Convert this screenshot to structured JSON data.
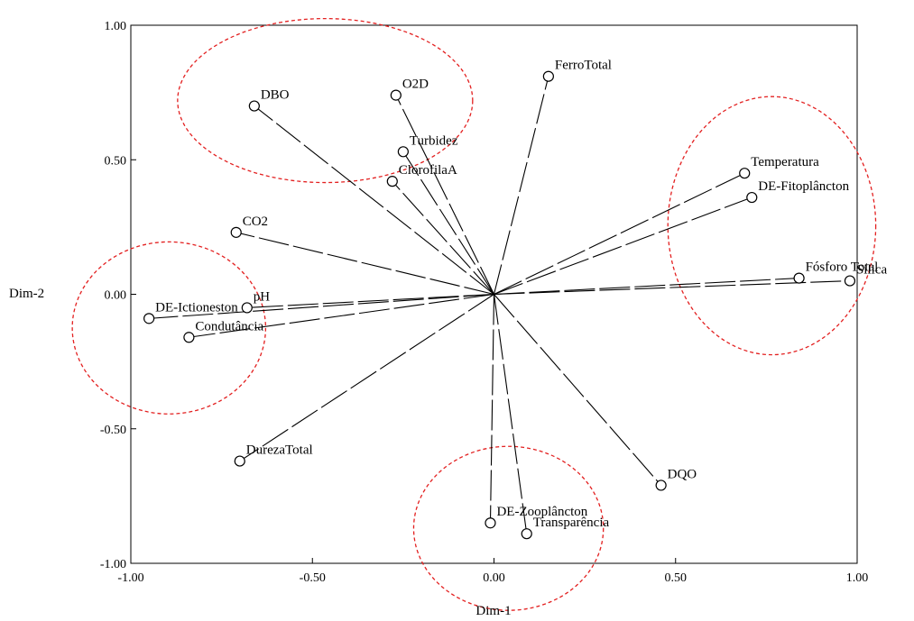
{
  "chart_data": {
    "type": "scatter",
    "title": "",
    "xlabel": "Dim-1",
    "ylabel": "Dim-2",
    "xlim": [
      -1.0,
      1.0
    ],
    "ylim": [
      -1.0,
      1.0
    ],
    "x_ticks": [
      "-1.00",
      "-0.50",
      "0.00",
      "0.50",
      "1.00"
    ],
    "y_ticks": [
      "1.00",
      "0.50",
      "0.00",
      "-0.50",
      "-1.00"
    ],
    "grid": false,
    "vectors_from_origin": true,
    "points": [
      {
        "label": "FerroTotal",
        "x": 0.15,
        "y": 0.81
      },
      {
        "label": "O2D",
        "x": -0.27,
        "y": 0.74
      },
      {
        "label": "DBO",
        "x": -0.66,
        "y": 0.7
      },
      {
        "label": "Turbidez",
        "x": -0.25,
        "y": 0.53
      },
      {
        "label": "ClorofilaA",
        "x": -0.28,
        "y": 0.42
      },
      {
        "label": "Temperatura",
        "x": 0.69,
        "y": 0.45
      },
      {
        "label": "DE-Fitoplâncton",
        "x": 0.71,
        "y": 0.36
      },
      {
        "label": "CO2",
        "x": -0.71,
        "y": 0.23
      },
      {
        "label": "Fósforo Total",
        "x": 0.84,
        "y": 0.06
      },
      {
        "label": "Silica",
        "x": 0.98,
        "y": 0.05
      },
      {
        "label": "pH",
        "x": -0.68,
        "y": -0.05
      },
      {
        "label": "DE-Ictioneston",
        "x": -0.95,
        "y": -0.09
      },
      {
        "label": "Condutância",
        "x": -0.84,
        "y": -0.16
      },
      {
        "label": "DurezaTotal",
        "x": -0.7,
        "y": -0.62
      },
      {
        "label": "DQO",
        "x": 0.46,
        "y": -0.71
      },
      {
        "label": "DE-Zooplâncton",
        "x": -0.01,
        "y": -0.85
      },
      {
        "label": "Transparência",
        "x": 0.09,
        "y": -0.89
      }
    ],
    "groups": [
      {
        "members": [
          "DBO",
          "O2D"
        ],
        "color": "#e32020"
      },
      {
        "members": [
          "Temperatura",
          "DE-Fitoplâncton",
          "Fósforo Total"
        ],
        "color": "#e32020"
      },
      {
        "members": [
          "DE-Ictioneston",
          "Condutância"
        ],
        "color": "#e32020"
      },
      {
        "members": [
          "DE-Zooplâncton",
          "Transparência"
        ],
        "color": "#e32020"
      }
    ],
    "colors": {
      "points": "#000000",
      "ellipses": "#e32020",
      "background": "#ffffff"
    }
  }
}
